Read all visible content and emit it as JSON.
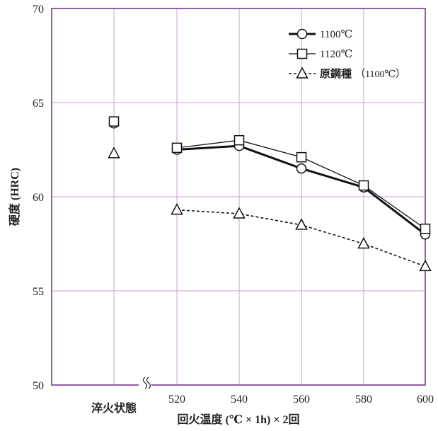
{
  "chart_data": {
    "type": "line",
    "xlabel": "回火温度 (℃ × 1h) × 2回",
    "ylabel": "硬度 (HRC)",
    "x_categories": [
      "淬火状態",
      "520",
      "540",
      "560",
      "580",
      "600"
    ],
    "ylim": [
      50,
      70
    ],
    "yticks": [
      "50",
      "55",
      "60",
      "65",
      "70"
    ],
    "axis_break_symbol": "≈",
    "grid": true,
    "legend_position": "top-right",
    "series": [
      {
        "name": "1100℃",
        "marker": "circle",
        "line_style": "solid-thick",
        "values": [
          63.9,
          62.5,
          62.7,
          61.5,
          60.5,
          58.0
        ]
      },
      {
        "name": "1120℃",
        "marker": "square",
        "line_style": "solid-thin",
        "values": [
          64.0,
          62.6,
          63.0,
          62.1,
          60.6,
          58.3
        ]
      },
      {
        "name": "原鋼種",
        "name_suffix": "（1100℃）",
        "marker": "triangle",
        "line_style": "dashed",
        "values": [
          62.3,
          59.3,
          59.1,
          58.5,
          57.5,
          56.3
        ]
      }
    ],
    "colors": {
      "frame": "#9b59b6",
      "grid": "#c9a2d6",
      "series": "#111111"
    }
  }
}
